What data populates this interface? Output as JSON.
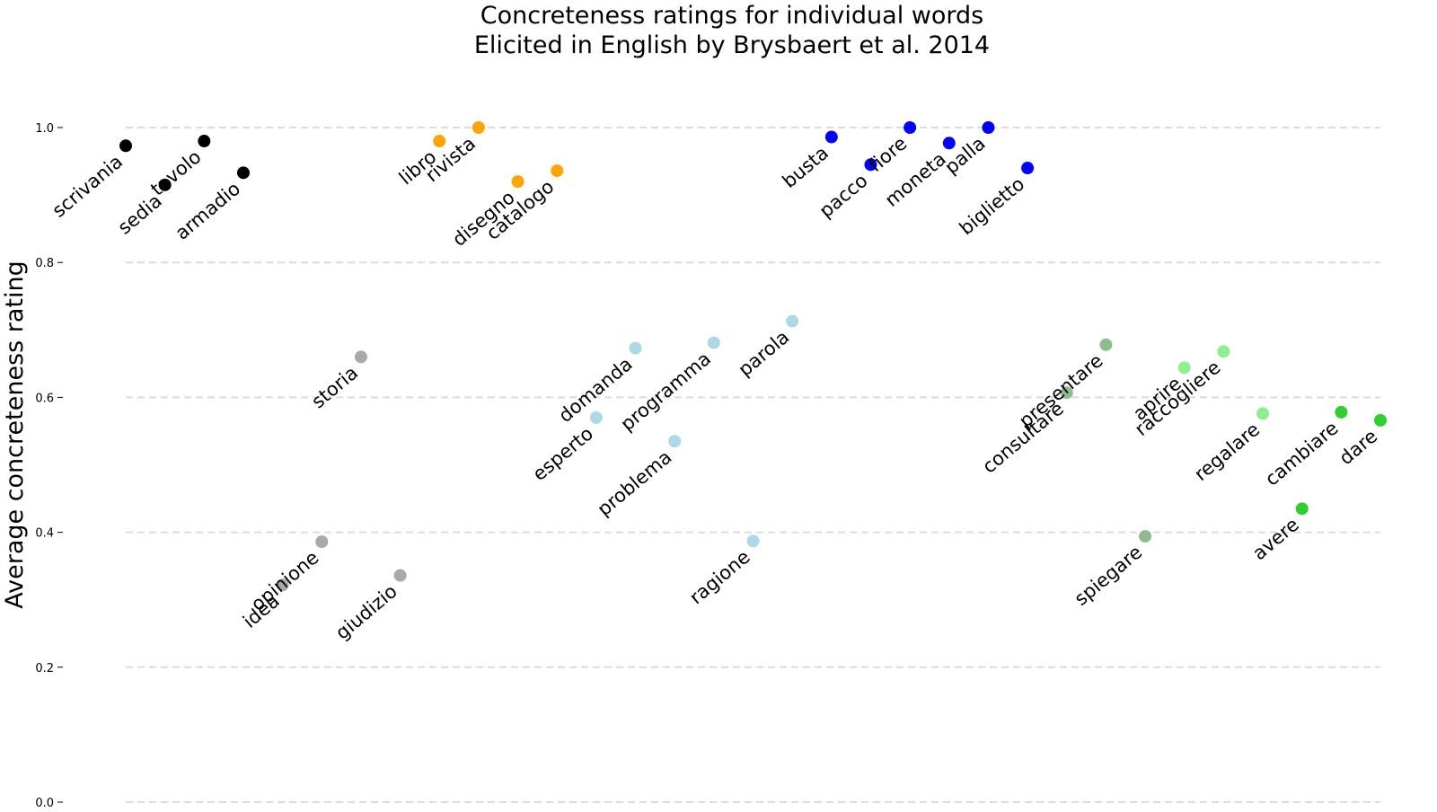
{
  "chart_data": {
    "type": "scatter",
    "title": [
      "Concreteness ratings for individual words",
      "Elicited in English by Brysbaert et al. 2014"
    ],
    "xlabel": "",
    "ylabel": "Average concreteness rating",
    "ylim": [
      0.0,
      1.0
    ],
    "yticks": [
      "0.0",
      "0.2",
      "0.4",
      "0.6",
      "0.8",
      "1.0"
    ],
    "grid": "horizontal dashed",
    "legend": "none",
    "x_range": [
      0,
      32
    ],
    "points": [
      {
        "word": "scrivania",
        "x": 0,
        "y": 0.973,
        "color": "#000000"
      },
      {
        "word": "sedia",
        "x": 1,
        "y": 0.915,
        "color": "#000000"
      },
      {
        "word": "tavolo",
        "x": 2,
        "y": 0.98,
        "color": "#000000"
      },
      {
        "word": "armadio",
        "x": 3,
        "y": 0.933,
        "color": "#000000"
      },
      {
        "word": "idea",
        "x": 4,
        "y": 0.322,
        "color": "#a9a9a9"
      },
      {
        "word": "opinione",
        "x": 5,
        "y": 0.386,
        "color": "#a9a9a9"
      },
      {
        "word": "storia",
        "x": 6,
        "y": 0.66,
        "color": "#a9a9a9"
      },
      {
        "word": "giudizio",
        "x": 7,
        "y": 0.336,
        "color": "#a9a9a9"
      },
      {
        "word": "libro",
        "x": 8,
        "y": 0.98,
        "color": "#ffa500"
      },
      {
        "word": "rivista",
        "x": 9,
        "y": 1.0,
        "color": "#ffa500"
      },
      {
        "word": "disegno",
        "x": 10,
        "y": 0.92,
        "color": "#ffa500"
      },
      {
        "word": "catalogo",
        "x": 11,
        "y": 0.936,
        "color": "#ffa500"
      },
      {
        "word": "esperto",
        "x": 12,
        "y": 0.57,
        "color": "#add8e6"
      },
      {
        "word": "domanda",
        "x": 13,
        "y": 0.673,
        "color": "#add8e6"
      },
      {
        "word": "problema",
        "x": 14,
        "y": 0.535,
        "color": "#add8e6"
      },
      {
        "word": "programma",
        "x": 15,
        "y": 0.681,
        "color": "#add8e6"
      },
      {
        "word": "ragione",
        "x": 16,
        "y": 0.387,
        "color": "#add8e6"
      },
      {
        "word": "parola",
        "x": 17,
        "y": 0.713,
        "color": "#add8e6"
      },
      {
        "word": "busta",
        "x": 18,
        "y": 0.986,
        "color": "#0000ff"
      },
      {
        "word": "pacco",
        "x": 19,
        "y": 0.945,
        "color": "#0000ff"
      },
      {
        "word": "fiore",
        "x": 20,
        "y": 1.0,
        "color": "#0000ff"
      },
      {
        "word": "moneta",
        "x": 21,
        "y": 0.977,
        "color": "#0000ff"
      },
      {
        "word": "palla",
        "x": 22,
        "y": 1.0,
        "color": "#0000ff"
      },
      {
        "word": "biglietto",
        "x": 23,
        "y": 0.94,
        "color": "#0000ff"
      },
      {
        "word": "consultare",
        "x": 24,
        "y": 0.607,
        "color": "#8fbc8f"
      },
      {
        "word": "presentare",
        "x": 25,
        "y": 0.678,
        "color": "#8fbc8f"
      },
      {
        "word": "spiegare",
        "x": 26,
        "y": 0.394,
        "color": "#8fbc8f"
      },
      {
        "word": "aprire",
        "x": 27,
        "y": 0.644,
        "color": "#90ee90"
      },
      {
        "word": "raccogliere",
        "x": 28,
        "y": 0.668,
        "color": "#90ee90"
      },
      {
        "word": "regalare",
        "x": 29,
        "y": 0.576,
        "color": "#90ee90"
      },
      {
        "word": "avere",
        "x": 30,
        "y": 0.435,
        "color": "#32cd32"
      },
      {
        "word": "cambiare",
        "x": 31,
        "y": 0.578,
        "color": "#32cd32"
      },
      {
        "word": "dare",
        "x": 32,
        "y": 0.566,
        "color": "#32cd32"
      }
    ]
  }
}
